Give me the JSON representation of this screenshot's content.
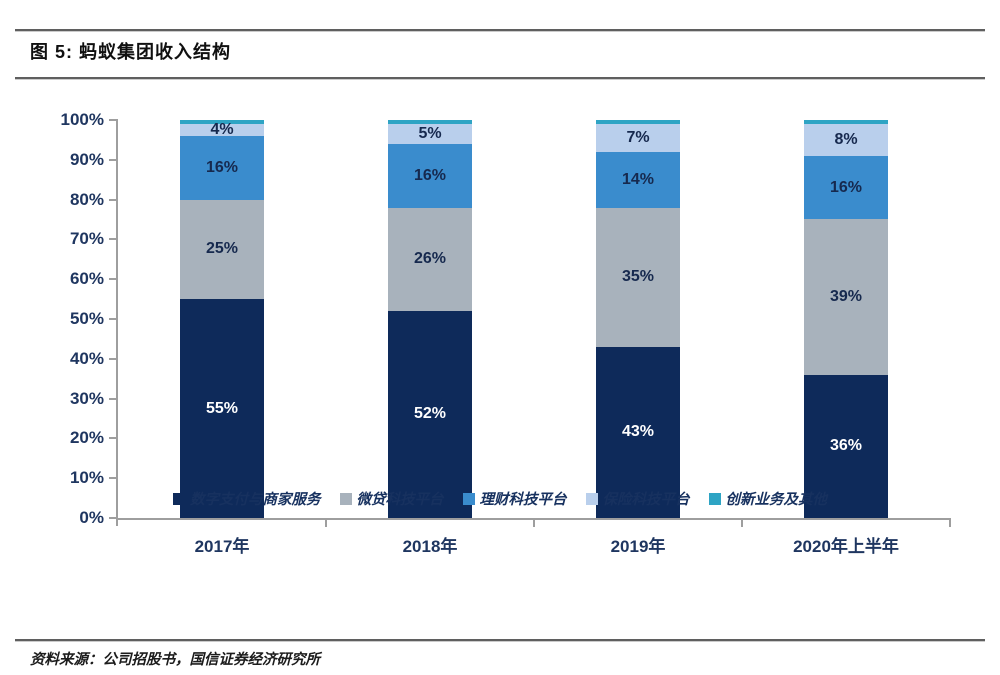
{
  "figure": {
    "title": "图 5: 蚂蚁集团收入结构",
    "source": "资料来源：公司招股书，国信证券经济研究所"
  },
  "colors": {
    "navy": "#0e2a5a",
    "gray": "#a8b2bc",
    "blue": "#3a8ccd",
    "light_blue": "#b9cfec",
    "teal": "#2ea4c4",
    "axis": "#9e9e9e",
    "tick_label": "#1f3660"
  },
  "chart_data": {
    "type": "bar",
    "stacked": true,
    "title": "蚂蚁集团收入结构",
    "categories": [
      "2017年",
      "2018年",
      "2019年",
      "2020年上半年"
    ],
    "series": [
      {
        "name": "数字支付与商家服务",
        "color_key": "navy",
        "values": [
          55,
          52,
          43,
          36
        ],
        "label_color": "#ffffff",
        "show_labels": true
      },
      {
        "name": "微贷科技平台",
        "color_key": "gray",
        "values": [
          25,
          26,
          35,
          39
        ],
        "label_color": "#16294e",
        "show_labels": true
      },
      {
        "name": "理财科技平台",
        "color_key": "blue",
        "values": [
          16,
          16,
          14,
          16
        ],
        "label_color": "#16294e",
        "show_labels": true
      },
      {
        "name": "保险科技平台",
        "color_key": "light_blue",
        "values": [
          4,
          5,
          7,
          8
        ],
        "label_color": "#16294e",
        "show_labels": true
      },
      {
        "name": "创新业务及其他",
        "color_key": "teal",
        "values": [
          1,
          1,
          1,
          1
        ],
        "label_color": "#16294e",
        "show_labels": false
      }
    ],
    "y_ticks": [
      "100%",
      "90%",
      "80%",
      "70%",
      "60%",
      "50%",
      "40%",
      "30%",
      "20%",
      "10%",
      "0%"
    ],
    "ylim": [
      0,
      100
    ],
    "grid": false,
    "legend_position": "bottom",
    "xlabel": "",
    "ylabel": ""
  }
}
